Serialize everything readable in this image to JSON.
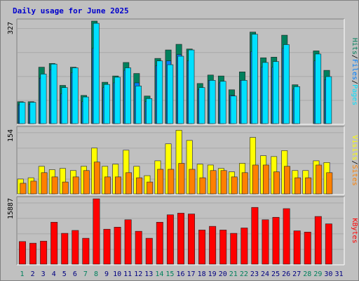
{
  "title": "Daily usage for June 2025",
  "colors": {
    "hits": "#00805c",
    "files": "#0080ff",
    "pages": "#00e0ff",
    "visits": "#ffff00",
    "sites": "#ff8000",
    "kbytes": "#ff0000",
    "background": "#c0c0c0",
    "title": "#0000cc",
    "weekend_day": "#00805c"
  },
  "chart_data": [
    {
      "type": "bar",
      "panel": "hits-files-pages",
      "ymax_label": "327",
      "ylim": [
        0,
        327
      ],
      "categories": [
        "1",
        "2",
        "3",
        "4",
        "5",
        "6",
        "7",
        "8",
        "9",
        "10",
        "11",
        "12",
        "13",
        "14",
        "15",
        "16",
        "17",
        "18",
        "19",
        "20",
        "21",
        "22",
        "23",
        "24",
        "25",
        "26",
        "27",
        "28",
        "29",
        "30",
        "31"
      ],
      "series": [
        {
          "name": "Hits",
          "values": [
            70,
            70,
            180,
            192,
            122,
            180,
            90,
            327,
            132,
            152,
            195,
            160,
            88,
            208,
            235,
            253,
            238,
            128,
            155,
            152,
            108,
            165,
            292,
            210,
            212,
            282,
            124,
            0,
            232,
            170,
            0
          ]
        },
        {
          "name": "Files",
          "values": [
            60,
            62,
            145,
            172,
            95,
            162,
            70,
            240,
            115,
            130,
            170,
            130,
            70,
            185,
            200,
            220,
            200,
            108,
            138,
            130,
            90,
            138,
            230,
            180,
            180,
            240,
            110,
            0,
            200,
            140,
            0
          ]
        },
        {
          "name": "Pages",
          "values": [
            68,
            68,
            158,
            190,
            115,
            178,
            85,
            320,
            125,
            148,
            178,
            120,
            80,
            200,
            188,
            215,
            235,
            115,
            138,
            135,
            88,
            138,
            285,
            195,
            198,
            252,
            118,
            0,
            222,
            150,
            0
          ]
        }
      ],
      "legend": [
        "Pages",
        "Files",
        "Hits"
      ]
    },
    {
      "type": "bar",
      "panel": "visits-sites",
      "ymax_label": "154",
      "ylim": [
        0,
        154
      ],
      "categories": [
        "1",
        "2",
        "3",
        "4",
        "5",
        "6",
        "7",
        "8",
        "9",
        "10",
        "11",
        "12",
        "13",
        "14",
        "15",
        "16",
        "17",
        "18",
        "19",
        "20",
        "21",
        "22",
        "23",
        "24",
        "25",
        "26",
        "27",
        "28",
        "29",
        "30",
        "31"
      ],
      "series": [
        {
          "name": "Visits",
          "values": [
            35,
            38,
            65,
            57,
            60,
            55,
            65,
            108,
            65,
            70,
            103,
            65,
            43,
            78,
            118,
            150,
            126,
            70,
            68,
            60,
            52,
            72,
            133,
            90,
            88,
            102,
            55,
            55,
            78,
            74,
            0
          ]
        },
        {
          "name": "Sites",
          "values": [
            25,
            30,
            50,
            40,
            28,
            40,
            55,
            75,
            40,
            40,
            50,
            38,
            28,
            58,
            58,
            72,
            58,
            38,
            55,
            55,
            40,
            50,
            68,
            68,
            52,
            65,
            38,
            38,
            68,
            50,
            0
          ]
        }
      ],
      "legend": [
        "Sites",
        "Visits"
      ]
    },
    {
      "type": "bar",
      "panel": "kbytes",
      "ymax_label": "15887",
      "ylim": [
        0,
        15887
      ],
      "categories": [
        "1",
        "2",
        "3",
        "4",
        "5",
        "6",
        "7",
        "8",
        "9",
        "10",
        "11",
        "12",
        "13",
        "14",
        "15",
        "16",
        "17",
        "18",
        "19",
        "20",
        "21",
        "22",
        "23",
        "24",
        "25",
        "26",
        "27",
        "28",
        "29",
        "30",
        "31"
      ],
      "series": [
        {
          "name": "KBytes",
          "values": [
            5500,
            5100,
            5600,
            10200,
            7500,
            8200,
            6300,
            15887,
            8500,
            9000,
            10800,
            8000,
            6300,
            10200,
            12000,
            12400,
            12200,
            8300,
            9200,
            8300,
            7500,
            8800,
            13800,
            10800,
            11400,
            13500,
            8100,
            7800,
            11600,
            9800,
            0
          ]
        }
      ],
      "legend": [
        "KBytes"
      ]
    }
  ],
  "weekend_days": [
    1,
    7,
    8,
    14,
    15,
    21,
    22,
    28,
    29
  ]
}
